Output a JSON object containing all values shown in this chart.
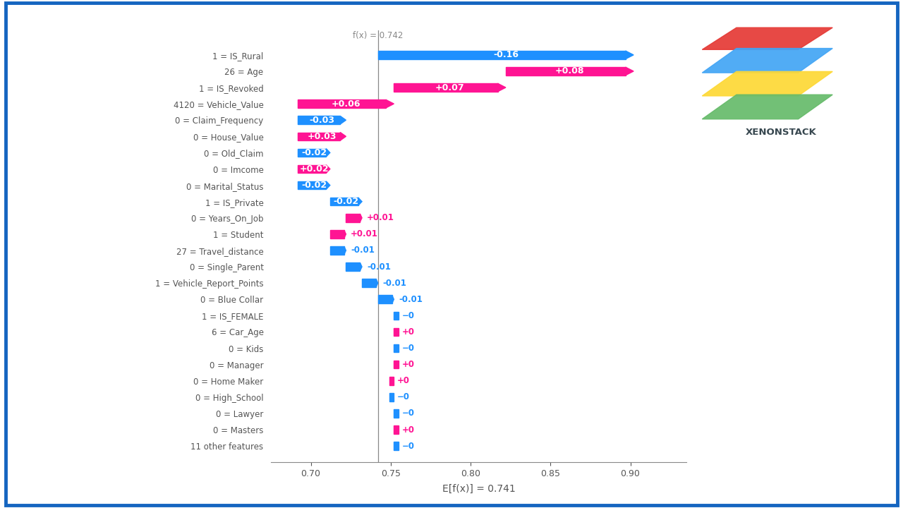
{
  "fx_value": 0.742,
  "efx_value": 0.741,
  "features": [
    {
      "label": "1 = IS_Rural",
      "value": -0.16,
      "color": "blue"
    },
    {
      "label": "26 = Age",
      "value": 0.08,
      "color": "red"
    },
    {
      "label": "1 = IS_Revoked",
      "value": 0.07,
      "color": "red"
    },
    {
      "label": "4120 = Vehicle_Value",
      "value": 0.06,
      "color": "red"
    },
    {
      "label": "0 = Claim_Frequency",
      "value": -0.03,
      "color": "blue"
    },
    {
      "label": "0 = House_Value",
      "value": 0.03,
      "color": "red"
    },
    {
      "label": "0 = Old_Claim",
      "value": -0.02,
      "color": "blue"
    },
    {
      "label": "0 = Imcome",
      "value": 0.02,
      "color": "red"
    },
    {
      "label": "0 = Marital_Status",
      "value": -0.02,
      "color": "blue"
    },
    {
      "label": "1 = IS_Private",
      "value": -0.02,
      "color": "blue"
    },
    {
      "label": "0 = Years_On_Job",
      "value": 0.01,
      "color": "red"
    },
    {
      "label": "1 = Student",
      "value": 0.01,
      "color": "red"
    },
    {
      "label": "27 = Travel_distance",
      "value": -0.01,
      "color": "blue"
    },
    {
      "label": "0 = Single_Parent",
      "value": -0.01,
      "color": "blue"
    },
    {
      "label": "1 = Vehicle_Report_Points",
      "value": -0.01,
      "color": "blue"
    },
    {
      "label": "0 = Blue Collar",
      "value": -0.01,
      "color": "blue"
    },
    {
      "label": "1 = IS_FEMALE",
      "value": -0.003,
      "color": "blue"
    },
    {
      "label": "6 = Car_Age",
      "value": 0.003,
      "color": "red"
    },
    {
      "label": "0 = Kids",
      "value": -0.003,
      "color": "blue"
    },
    {
      "label": "0 = Manager",
      "value": 0.003,
      "color": "red"
    },
    {
      "label": "0 = Home Maker",
      "value": 0.003,
      "color": "red"
    },
    {
      "label": "0 = High_School",
      "value": -0.003,
      "color": "blue"
    },
    {
      "label": "0 = Lawyer",
      "value": -0.003,
      "color": "blue"
    },
    {
      "label": "0 = Masters",
      "value": 0.003,
      "color": "red"
    },
    {
      "label": "11 other features",
      "value": -0.003,
      "color": "blue"
    }
  ],
  "blue_color": "#1E90FF",
  "red_color": "#FF1493",
  "background_color": "#FFFFFF",
  "border_color": "#1565C0",
  "xlabel": "E[f(x)] = 0.741",
  "xlim_left": 0.675,
  "xlim_right": 0.935,
  "xticks": [
    0.7,
    0.75,
    0.8,
    0.85,
    0.9
  ]
}
